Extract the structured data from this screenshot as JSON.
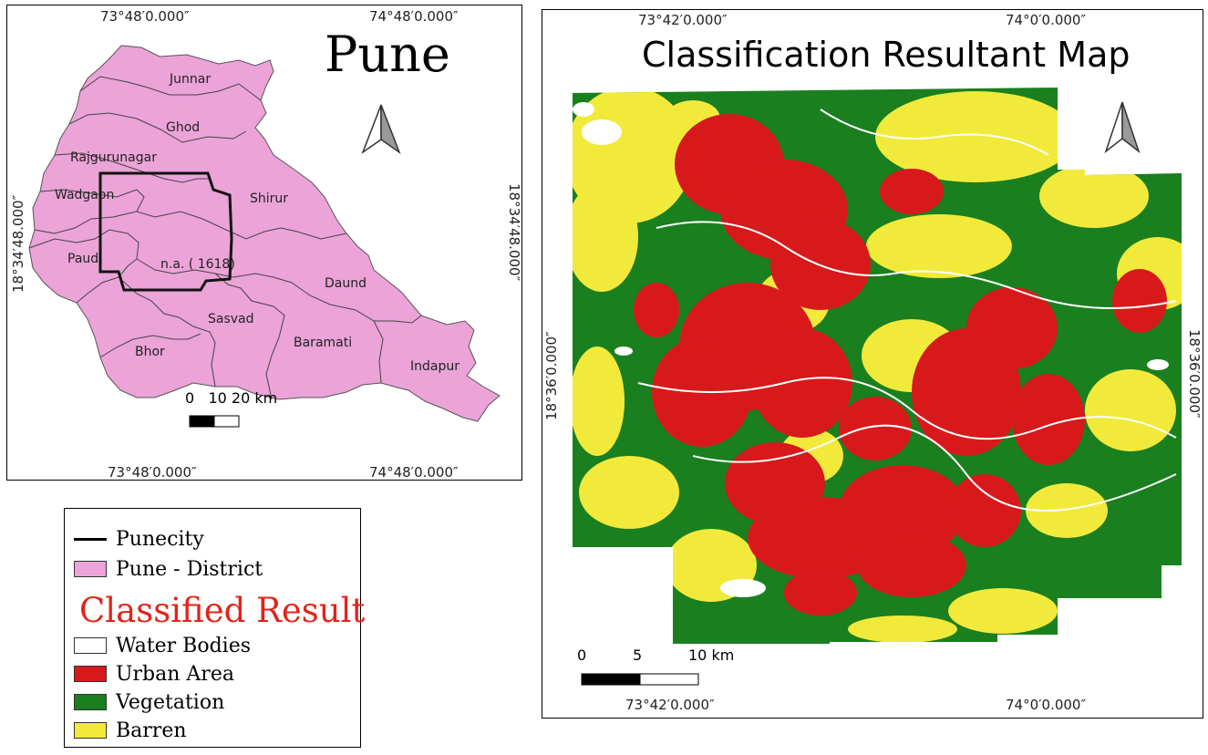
{
  "left_map": {
    "title": "Pune",
    "coords_top": [
      "73°48′0.000″",
      "74°48′0.000″"
    ],
    "coords_bottom": [
      "73°48′0.000″",
      "74°48′0.000″"
    ],
    "coord_left": "18°34′48.000″",
    "coord_right": "18°34′48.000″",
    "districts": [
      "Junnar",
      "Ghod",
      "Rajgurunagar",
      "Wadgaon",
      "Shirur",
      "Paud",
      "n.a. ( 1618)",
      "Daund",
      "Sasvad",
      "Bhor",
      "Baramati",
      "Indapur"
    ],
    "scale_text": "0   10 20 km",
    "district_fill": "#eba3d8",
    "north_arrow": "north-arrow-icon"
  },
  "right_map": {
    "title": "Classification Resultant Map",
    "coords_top": [
      "73°42′0.000″",
      "74°0′0.000″"
    ],
    "coords_bottom": [
      "73°42′0.000″",
      "74°0′0.000″"
    ],
    "coord_left": "18°36′0.000″",
    "coord_right": "18°36′0.000″",
    "scale_labels": [
      "0",
      "5",
      "10 km"
    ],
    "north_arrow": "north-arrow-icon"
  },
  "legend": {
    "punecity": "Punecity",
    "district": "Pune - District",
    "header": "Classified Result",
    "classes": [
      {
        "label": "Water Bodies",
        "color": "#ffffff"
      },
      {
        "label": "Urban Area",
        "color": "#d7191c"
      },
      {
        "label": "Vegetation",
        "color": "#1a7f1f"
      },
      {
        "label": "Barren",
        "color": "#f2ea3a"
      }
    ]
  }
}
